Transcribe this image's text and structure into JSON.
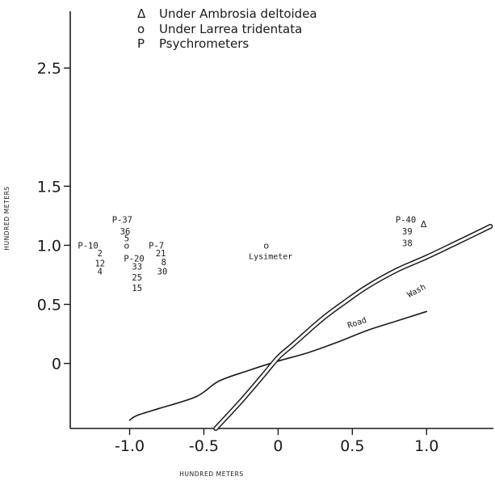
{
  "chart_data": {
    "type": "scatter",
    "xlabel": "HUNDRED METERS",
    "ylabel": "HUNDRED METERS",
    "xlim": [
      -1.4,
      1.45
    ],
    "ylim": [
      -0.55,
      2.98
    ],
    "x_ticks": [
      {
        "value": -1.0,
        "label": "-1.0"
      },
      {
        "value": -0.5,
        "label": "-0.5"
      },
      {
        "value": 0,
        "label": "0"
      },
      {
        "value": 0.5,
        "label": "0.5"
      },
      {
        "value": 1.0,
        "label": "1.0"
      }
    ],
    "y_ticks": [
      {
        "value": 0,
        "label": "0"
      },
      {
        "value": 0.5,
        "label": "0.5"
      },
      {
        "value": 1.0,
        "label": "1.0"
      },
      {
        "value": 1.5,
        "label": "1.5"
      },
      {
        "value": 2.5,
        "label": "2.5"
      }
    ],
    "legend": [
      {
        "symbol": "Δ",
        "text": "Under Ambrosia deltoidea"
      },
      {
        "symbol": "o",
        "text": "Under Larrea tridentata"
      },
      {
        "symbol": "P",
        "text": "Psychrometers"
      }
    ],
    "site_labels": [
      {
        "text": "P-37",
        "x": -1.05,
        "y": 1.22
      },
      {
        "text": "36",
        "x": -1.03,
        "y": 1.12
      },
      {
        "text": "5",
        "x": -1.02,
        "y": 1.06
      },
      {
        "text": "P-10",
        "x": -1.28,
        "y": 1.0
      },
      {
        "text": "P-7",
        "x": -0.82,
        "y": 1.0
      },
      {
        "text": "2",
        "x": -1.2,
        "y": 0.935
      },
      {
        "text": "21",
        "x": -0.79,
        "y": 0.935
      },
      {
        "text": "P-20",
        "x": -0.97,
        "y": 0.89
      },
      {
        "text": "12",
        "x": -1.2,
        "y": 0.85
      },
      {
        "text": "8",
        "x": -0.77,
        "y": 0.86
      },
      {
        "text": "33",
        "x": -0.95,
        "y": 0.82
      },
      {
        "text": "4",
        "x": -1.2,
        "y": 0.78
      },
      {
        "text": "30",
        "x": -0.78,
        "y": 0.78
      },
      {
        "text": "25",
        "x": -0.95,
        "y": 0.73
      },
      {
        "text": "15",
        "x": -0.95,
        "y": 0.64
      },
      {
        "text": "P-40",
        "x": 0.86,
        "y": 1.22
      },
      {
        "text": "39",
        "x": 0.87,
        "y": 1.12
      },
      {
        "text": "38",
        "x": 0.87,
        "y": 1.02
      }
    ],
    "series": [
      {
        "name": "Under Ambrosia deltoidea",
        "symbol": "Δ",
        "points": [
          {
            "x": 0.98,
            "y": 1.18
          }
        ]
      },
      {
        "name": "Under Larrea tridentata",
        "symbol": "o",
        "points": [
          {
            "x": -1.02,
            "y": 1.0
          },
          {
            "x": -0.08,
            "y": 1.0
          }
        ]
      }
    ],
    "annotations": [
      {
        "text": "Lysimeter",
        "x": -0.05,
        "y": 0.91
      },
      {
        "text": "Wash",
        "x": 0.93,
        "y": 0.62
      },
      {
        "text": "Road",
        "x": 0.53,
        "y": 0.35
      }
    ],
    "lines": [
      {
        "name": "Road",
        "points": [
          [
            -1.0,
            -0.48
          ],
          [
            -0.95,
            -0.44
          ],
          [
            -0.8,
            -0.38
          ],
          [
            -0.55,
            -0.28
          ],
          [
            -0.4,
            -0.15
          ],
          [
            -0.2,
            -0.06
          ],
          [
            0.0,
            0.02
          ],
          [
            0.2,
            0.09
          ],
          [
            0.4,
            0.18
          ],
          [
            0.6,
            0.28
          ],
          [
            0.8,
            0.36
          ],
          [
            1.0,
            0.44
          ]
        ]
      },
      {
        "name": "Wash",
        "points": [
          [
            -0.42,
            -0.55
          ],
          [
            -0.25,
            -0.32
          ],
          [
            -0.1,
            -0.1
          ],
          [
            0.0,
            0.05
          ],
          [
            0.1,
            0.16
          ],
          [
            0.3,
            0.38
          ],
          [
            0.45,
            0.52
          ],
          [
            0.6,
            0.65
          ],
          [
            0.8,
            0.79
          ],
          [
            1.0,
            0.9
          ],
          [
            1.2,
            1.02
          ],
          [
            1.43,
            1.16
          ]
        ]
      }
    ]
  }
}
